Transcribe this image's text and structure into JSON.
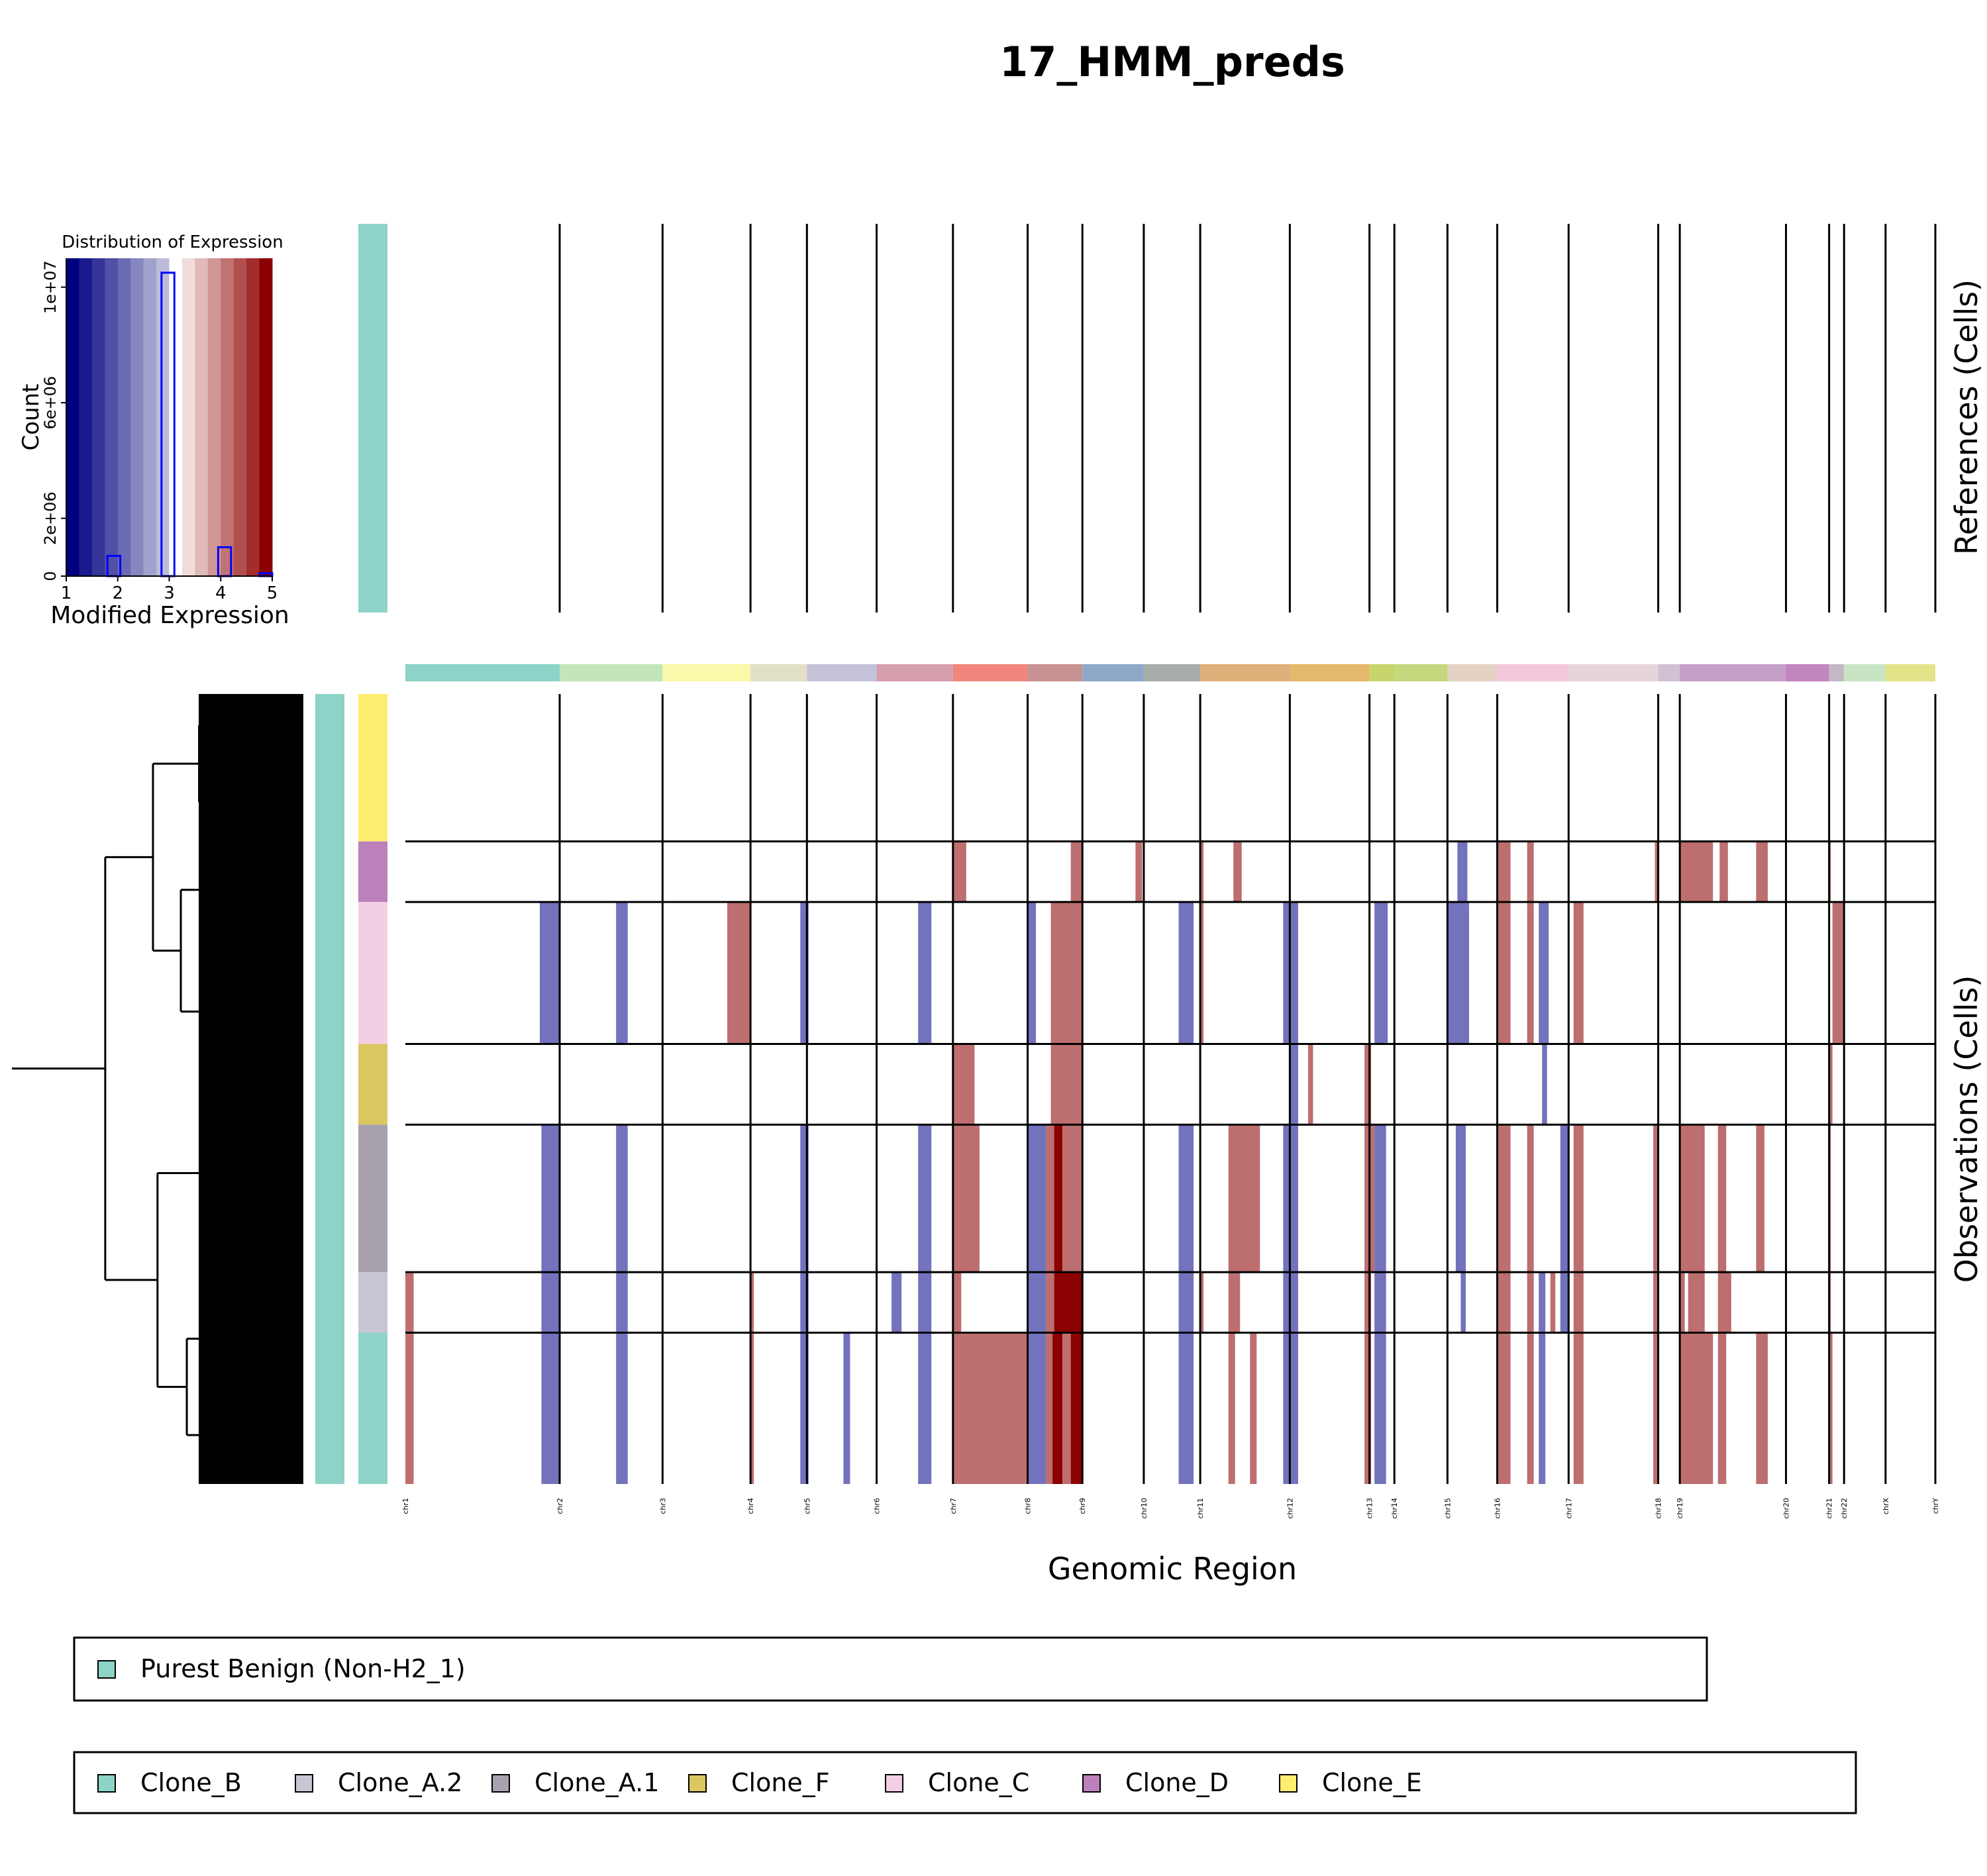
{
  "chart_data": {
    "type": "heatmap",
    "title": "17_HMM_preds",
    "xlabel": "Genomic Region",
    "ylabel_references": "References (Cells)",
    "ylabel_observations": "Observations (Cells)",
    "colors": {
      "loss": "#7272bd",
      "gain": "#bd6e6e",
      "high_gain": "#8b0000",
      "neutral": "#ffffff"
    },
    "chromosomes": [
      {
        "name": "chr1",
        "start": 0,
        "end": 9.3,
        "color": "#8dd3c7"
      },
      {
        "name": "chr2",
        "start": 9.3,
        "end": 15.5,
        "color": "#c4e5b9"
      },
      {
        "name": "chr3",
        "start": 15.5,
        "end": 20.8,
        "color": "#f9f9a9"
      },
      {
        "name": "chr4",
        "start": 20.8,
        "end": 24.2,
        "color": "#e2dfc7"
      },
      {
        "name": "chr5",
        "start": 24.2,
        "end": 28.4,
        "color": "#c6c2da"
      },
      {
        "name": "chr6",
        "start": 28.4,
        "end": 33.0,
        "color": "#d59fae"
      },
      {
        "name": "chr7",
        "start": 33.0,
        "end": 37.5,
        "color": "#f1877c"
      },
      {
        "name": "chr8",
        "start": 37.5,
        "end": 40.8,
        "color": "#c89392"
      },
      {
        "name": "chr9",
        "start": 40.8,
        "end": 44.5,
        "color": "#8fa8c8"
      },
      {
        "name": "chr10",
        "start": 44.5,
        "end": 47.9,
        "color": "#a7aba9"
      },
      {
        "name": "chr11",
        "start": 47.9,
        "end": 53.3,
        "color": "#deb07a"
      },
      {
        "name": "chr12",
        "start": 53.3,
        "end": 58.1,
        "color": "#e5b96b"
      },
      {
        "name": "chr13",
        "start": 58.1,
        "end": 59.6,
        "color": "#c8d46c"
      },
      {
        "name": "chr14",
        "start": 59.6,
        "end": 62.8,
        "color": "#c5d87e"
      },
      {
        "name": "chr15",
        "start": 62.8,
        "end": 65.8,
        "color": "#e5d2c3"
      },
      {
        "name": "chr16",
        "start": 65.8,
        "end": 70.1,
        "color": "#f4c8dc"
      },
      {
        "name": "chr17",
        "start": 70.1,
        "end": 75.5,
        "color": "#e6d4dd"
      },
      {
        "name": "chr18",
        "start": 75.5,
        "end": 76.8,
        "color": "#d0c1d3"
      },
      {
        "name": "chr19",
        "start": 76.8,
        "end": 83.2,
        "color": "#c69fc9"
      },
      {
        "name": "chr20",
        "start": 83.2,
        "end": 85.8,
        "color": "#c185c0"
      },
      {
        "name": "chr21",
        "start": 85.8,
        "end": 86.7,
        "color": "#c5b8c5"
      },
      {
        "name": "chr22",
        "start": 86.7,
        "end": 89.2,
        "color": "#c8e4c3"
      },
      {
        "name": "chrX",
        "start": 89.2,
        "end": 92.2,
        "color": "#e2e48a"
      },
      {
        "name": "chrY",
        "start": 92.2,
        "end": 92.2,
        "color": "#e2e48a"
      }
    ],
    "genome_length": 92.2,
    "observation_groups": [
      {
        "name": "Clone_E",
        "cells": 190,
        "color": "#ffed6f"
      },
      {
        "name": "Clone_D",
        "cells": 78,
        "color": "#bc80bd"
      },
      {
        "name": "Clone_C",
        "cells": 183,
        "color": "#f2cfe2"
      },
      {
        "name": "Clone_F",
        "cells": 104,
        "color": "#dbc762"
      },
      {
        "name": "Clone_A.1",
        "cells": 190,
        "color": "#a9a1ae"
      },
      {
        "name": "Clone_A.2",
        "cells": 78,
        "color": "#c8c5d4"
      },
      {
        "name": "Clone_B",
        "cells": 195,
        "color": "#8dd3c7"
      }
    ],
    "cnv_segments": [
      {
        "group": "Clone_D",
        "state": "gain",
        "start": 33.0,
        "end": 33.8
      },
      {
        "group": "Clone_D",
        "state": "gain",
        "start": 40.1,
        "end": 40.8
      },
      {
        "group": "Clone_D",
        "state": "gain",
        "start": 44.0,
        "end": 44.4
      },
      {
        "group": "Clone_D",
        "state": "gain",
        "start": 47.9,
        "end": 48.1
      },
      {
        "group": "Clone_D",
        "state": "gain",
        "start": 49.9,
        "end": 50.4
      },
      {
        "group": "Clone_D",
        "state": "loss",
        "start": 63.4,
        "end": 64.0
      },
      {
        "group": "Clone_D",
        "state": "gain",
        "start": 65.8,
        "end": 66.6
      },
      {
        "group": "Clone_D",
        "state": "gain",
        "start": 67.6,
        "end": 68.0
      },
      {
        "group": "Clone_D",
        "state": "gain",
        "start": 75.3,
        "end": 75.5
      },
      {
        "group": "Clone_D",
        "state": "gain",
        "start": 76.8,
        "end": 78.8
      },
      {
        "group": "Clone_D",
        "state": "gain",
        "start": 79.2,
        "end": 79.7
      },
      {
        "group": "Clone_D",
        "state": "gain",
        "start": 81.4,
        "end": 82.1
      },
      {
        "group": "Clone_D",
        "state": "gain",
        "start": 85.8,
        "end": 85.9
      },
      {
        "group": "Clone_C",
        "state": "loss",
        "start": 8.1,
        "end": 9.3
      },
      {
        "group": "Clone_C",
        "state": "loss",
        "start": 12.7,
        "end": 13.4
      },
      {
        "group": "Clone_C",
        "state": "gain",
        "start": 19.4,
        "end": 20.8
      },
      {
        "group": "Clone_C",
        "state": "loss",
        "start": 23.8,
        "end": 24.3
      },
      {
        "group": "Clone_C",
        "state": "loss",
        "start": 30.9,
        "end": 31.7
      },
      {
        "group": "Clone_C",
        "state": "loss",
        "start": 37.5,
        "end": 38.0
      },
      {
        "group": "Clone_C",
        "state": "gain",
        "start": 38.9,
        "end": 40.8
      },
      {
        "group": "Clone_C",
        "state": "loss",
        "start": 46.6,
        "end": 47.5
      },
      {
        "group": "Clone_C",
        "state": "gain",
        "start": 47.9,
        "end": 48.1
      },
      {
        "group": "Clone_C",
        "state": "loss",
        "start": 52.9,
        "end": 53.8
      },
      {
        "group": "Clone_C",
        "state": "loss",
        "start": 58.4,
        "end": 59.2
      },
      {
        "group": "Clone_C",
        "state": "loss",
        "start": 62.8,
        "end": 64.1
      },
      {
        "group": "Clone_C",
        "state": "gain",
        "start": 65.8,
        "end": 66.6
      },
      {
        "group": "Clone_C",
        "state": "gain",
        "start": 67.6,
        "end": 68.0
      },
      {
        "group": "Clone_C",
        "state": "loss",
        "start": 68.3,
        "end": 68.9
      },
      {
        "group": "Clone_C",
        "state": "gain",
        "start": 70.4,
        "end": 71.0
      },
      {
        "group": "Clone_C",
        "state": "gain",
        "start": 86.0,
        "end": 86.7
      },
      {
        "group": "Clone_F",
        "state": "gain",
        "start": 33.0,
        "end": 34.3
      },
      {
        "group": "Clone_F",
        "state": "gain",
        "start": 38.9,
        "end": 40.8
      },
      {
        "group": "Clone_F",
        "state": "loss",
        "start": 53.3,
        "end": 53.8
      },
      {
        "group": "Clone_F",
        "state": "gain",
        "start": 54.4,
        "end": 54.7
      },
      {
        "group": "Clone_F",
        "state": "gain",
        "start": 57.8,
        "end": 58.2
      },
      {
        "group": "Clone_F",
        "state": "loss",
        "start": 68.5,
        "end": 68.8
      },
      {
        "group": "Clone_F",
        "state": "gain",
        "start": 85.8,
        "end": 86.0
      },
      {
        "group": "Clone_A.1",
        "state": "loss",
        "start": 8.2,
        "end": 9.3
      },
      {
        "group": "Clone_A.1",
        "state": "loss",
        "start": 12.7,
        "end": 13.4
      },
      {
        "group": "Clone_A.1",
        "state": "loss",
        "start": 23.8,
        "end": 24.3
      },
      {
        "group": "Clone_A.1",
        "state": "loss",
        "start": 30.9,
        "end": 31.7
      },
      {
        "group": "Clone_A.1",
        "state": "gain",
        "start": 33.0,
        "end": 34.6
      },
      {
        "group": "Clone_A.1",
        "state": "loss",
        "start": 37.5,
        "end": 38.6
      },
      {
        "group": "Clone_A.1",
        "state": "gain",
        "start": 38.6,
        "end": 39.1
      },
      {
        "group": "Clone_A.1",
        "state": "high_gain",
        "start": 39.1,
        "end": 39.6
      },
      {
        "group": "Clone_A.1",
        "state": "gain",
        "start": 39.6,
        "end": 40.8
      },
      {
        "group": "Clone_A.1",
        "state": "loss",
        "start": 46.6,
        "end": 47.5
      },
      {
        "group": "Clone_A.1",
        "state": "gain",
        "start": 49.6,
        "end": 51.5
      },
      {
        "group": "Clone_A.1",
        "state": "loss",
        "start": 52.9,
        "end": 53.8
      },
      {
        "group": "Clone_A.1",
        "state": "gain",
        "start": 57.8,
        "end": 58.4
      },
      {
        "group": "Clone_A.1",
        "state": "loss",
        "start": 58.4,
        "end": 59.1
      },
      {
        "group": "Clone_A.1",
        "state": "loss",
        "start": 63.3,
        "end": 63.9
      },
      {
        "group": "Clone_A.1",
        "state": "gain",
        "start": 65.8,
        "end": 66.6
      },
      {
        "group": "Clone_A.1",
        "state": "gain",
        "start": 67.6,
        "end": 68.0
      },
      {
        "group": "Clone_A.1",
        "state": "loss",
        "start": 69.6,
        "end": 70.1
      },
      {
        "group": "Clone_A.1",
        "state": "gain",
        "start": 70.4,
        "end": 71.0
      },
      {
        "group": "Clone_A.1",
        "state": "gain",
        "start": 75.2,
        "end": 75.5
      },
      {
        "group": "Clone_A.1",
        "state": "gain",
        "start": 76.8,
        "end": 78.3
      },
      {
        "group": "Clone_A.1",
        "state": "gain",
        "start": 79.1,
        "end": 79.6
      },
      {
        "group": "Clone_A.1",
        "state": "gain",
        "start": 81.4,
        "end": 81.9
      },
      {
        "group": "Clone_A.1",
        "state": "gain",
        "start": 85.8,
        "end": 85.9
      },
      {
        "group": "Clone_A.2",
        "state": "gain",
        "start": 0,
        "end": 0.5
      },
      {
        "group": "Clone_A.2",
        "state": "loss",
        "start": 8.2,
        "end": 9.3
      },
      {
        "group": "Clone_A.2",
        "state": "loss",
        "start": 12.7,
        "end": 13.4
      },
      {
        "group": "Clone_A.2",
        "state": "gain",
        "start": 20.8,
        "end": 21.0
      },
      {
        "group": "Clone_A.2",
        "state": "loss",
        "start": 23.8,
        "end": 24.3
      },
      {
        "group": "Clone_A.2",
        "state": "loss",
        "start": 29.3,
        "end": 29.9
      },
      {
        "group": "Clone_A.2",
        "state": "loss",
        "start": 30.9,
        "end": 31.7
      },
      {
        "group": "Clone_A.2",
        "state": "gain",
        "start": 33.0,
        "end": 33.5
      },
      {
        "group": "Clone_A.2",
        "state": "loss",
        "start": 37.5,
        "end": 38.6
      },
      {
        "group": "Clone_A.2",
        "state": "gain",
        "start": 38.6,
        "end": 39.1
      },
      {
        "group": "Clone_A.2",
        "state": "high_gain",
        "start": 39.1,
        "end": 40.8
      },
      {
        "group": "Clone_A.2",
        "state": "loss",
        "start": 46.6,
        "end": 47.5
      },
      {
        "group": "Clone_A.2",
        "state": "gain",
        "start": 47.9,
        "end": 48.1
      },
      {
        "group": "Clone_A.2",
        "state": "gain",
        "start": 49.6,
        "end": 50.3
      },
      {
        "group": "Clone_A.2",
        "state": "loss",
        "start": 52.9,
        "end": 53.8
      },
      {
        "group": "Clone_A.2",
        "state": "gain",
        "start": 57.8,
        "end": 58.2
      },
      {
        "group": "Clone_A.2",
        "state": "loss",
        "start": 58.4,
        "end": 59.1
      },
      {
        "group": "Clone_A.2",
        "state": "loss",
        "start": 63.6,
        "end": 63.9
      },
      {
        "group": "Clone_A.2",
        "state": "gain",
        "start": 65.8,
        "end": 66.6
      },
      {
        "group": "Clone_A.2",
        "state": "gain",
        "start": 67.6,
        "end": 68.0
      },
      {
        "group": "Clone_A.2",
        "state": "loss",
        "start": 68.3,
        "end": 68.7
      },
      {
        "group": "Clone_A.2",
        "state": "gain",
        "start": 69.0,
        "end": 69.3
      },
      {
        "group": "Clone_A.2",
        "state": "loss",
        "start": 69.6,
        "end": 70.1
      },
      {
        "group": "Clone_A.2",
        "state": "gain",
        "start": 70.4,
        "end": 71.0
      },
      {
        "group": "Clone_A.2",
        "state": "gain",
        "start": 75.2,
        "end": 75.5
      },
      {
        "group": "Clone_A.2",
        "state": "gain",
        "start": 76.8,
        "end": 77.1
      },
      {
        "group": "Clone_A.2",
        "state": "gain",
        "start": 77.3,
        "end": 78.3
      },
      {
        "group": "Clone_A.2",
        "state": "gain",
        "start": 79.1,
        "end": 79.9
      },
      {
        "group": "Clone_A.2",
        "state": "gain",
        "start": 85.8,
        "end": 85.9
      },
      {
        "group": "Clone_B",
        "state": "gain",
        "start": 0,
        "end": 0.5
      },
      {
        "group": "Clone_B",
        "state": "loss",
        "start": 8.2,
        "end": 9.3
      },
      {
        "group": "Clone_B",
        "state": "loss",
        "start": 12.7,
        "end": 13.4
      },
      {
        "group": "Clone_B",
        "state": "gain",
        "start": 20.8,
        "end": 21.0
      },
      {
        "group": "Clone_B",
        "state": "loss",
        "start": 23.8,
        "end": 24.3
      },
      {
        "group": "Clone_B",
        "state": "loss",
        "start": 26.4,
        "end": 26.8
      },
      {
        "group": "Clone_B",
        "state": "loss",
        "start": 30.9,
        "end": 31.7
      },
      {
        "group": "Clone_B",
        "state": "gain",
        "start": 33.0,
        "end": 37.5
      },
      {
        "group": "Clone_B",
        "state": "loss",
        "start": 37.5,
        "end": 38.6
      },
      {
        "group": "Clone_B",
        "state": "gain",
        "start": 38.6,
        "end": 39.0
      },
      {
        "group": "Clone_B",
        "state": "high_gain",
        "start": 39.0,
        "end": 39.6
      },
      {
        "group": "Clone_B",
        "state": "gain",
        "start": 39.6,
        "end": 40.1
      },
      {
        "group": "Clone_B",
        "state": "high_gain",
        "start": 40.1,
        "end": 40.8
      },
      {
        "group": "Clone_B",
        "state": "loss",
        "start": 46.6,
        "end": 47.5
      },
      {
        "group": "Clone_B",
        "state": "gain",
        "start": 49.6,
        "end": 50.0
      },
      {
        "group": "Clone_B",
        "state": "gain",
        "start": 50.9,
        "end": 51.3
      },
      {
        "group": "Clone_B",
        "state": "loss",
        "start": 52.9,
        "end": 53.8
      },
      {
        "group": "Clone_B",
        "state": "gain",
        "start": 57.8,
        "end": 58.2
      },
      {
        "group": "Clone_B",
        "state": "loss",
        "start": 58.4,
        "end": 59.1
      },
      {
        "group": "Clone_B",
        "state": "gain",
        "start": 65.8,
        "end": 66.6
      },
      {
        "group": "Clone_B",
        "state": "gain",
        "start": 67.6,
        "end": 68.0
      },
      {
        "group": "Clone_B",
        "state": "loss",
        "start": 68.3,
        "end": 68.7
      },
      {
        "group": "Clone_B",
        "state": "gain",
        "start": 70.4,
        "end": 71.0
      },
      {
        "group": "Clone_B",
        "state": "gain",
        "start": 75.2,
        "end": 75.5
      },
      {
        "group": "Clone_B",
        "state": "gain",
        "start": 76.8,
        "end": 78.8
      },
      {
        "group": "Clone_B",
        "state": "gain",
        "start": 79.1,
        "end": 79.6
      },
      {
        "group": "Clone_B",
        "state": "gain",
        "start": 81.4,
        "end": 82.1
      },
      {
        "group": "Clone_B",
        "state": "gain",
        "start": 85.8,
        "end": 86.0
      }
    ],
    "histogram": {
      "title": "Distribution of Expression",
      "xlabel": "Modified Expression",
      "ylabel": "Count",
      "xlim": [
        1,
        5
      ],
      "ylim": [
        0,
        11000000
      ],
      "x_ticks": [
        "1",
        "2",
        "3",
        "4",
        "5"
      ],
      "y_ticks": [
        {
          "label": "0",
          "value": 0
        },
        {
          "label": "2e+06",
          "value": 2000000
        },
        {
          "label": "6e+06",
          "value": 6000000
        },
        {
          "label": "1e+07",
          "value": 10000000
        }
      ],
      "gradient": [
        "#000080",
        "#1a1a8c",
        "#353599",
        "#5050a6",
        "#6b6bb3",
        "#8686c0",
        "#a1a1cd",
        "#bcbcda",
        "#ffffff",
        "#f0dcdc",
        "#e0b9b9",
        "#d19696",
        "#c17373",
        "#b25050",
        "#a22d2d",
        "#8b0000"
      ],
      "bins": [
        {
          "x0": 1.8,
          "x1": 2.05,
          "count": 700000
        },
        {
          "x0": 2.85,
          "x1": 3.1,
          "count": 10500000
        },
        {
          "x0": 3.95,
          "x1": 4.2,
          "count": 1000000
        },
        {
          "x0": 4.75,
          "x1": 5.0,
          "count": 100000
        }
      ]
    },
    "reference_group": {
      "name": "Purest Benign (Non-H2_1)",
      "color": "#8dd3c7"
    },
    "legend_references": [
      {
        "name": "Purest Benign (Non-H2_1)",
        "color": "#8dd3c7"
      }
    ],
    "legend_observations": [
      {
        "name": "Clone_B",
        "color": "#8dd3c7"
      },
      {
        "name": "Clone_A.2",
        "color": "#c8c5d4"
      },
      {
        "name": "Clone_A.1",
        "color": "#a9a1ae"
      },
      {
        "name": "Clone_F",
        "color": "#dbc762"
      },
      {
        "name": "Clone_C",
        "color": "#f2cfe2"
      },
      {
        "name": "Clone_D",
        "color": "#bc80bd"
      },
      {
        "name": "Clone_E",
        "color": "#ffed6f"
      }
    ]
  }
}
